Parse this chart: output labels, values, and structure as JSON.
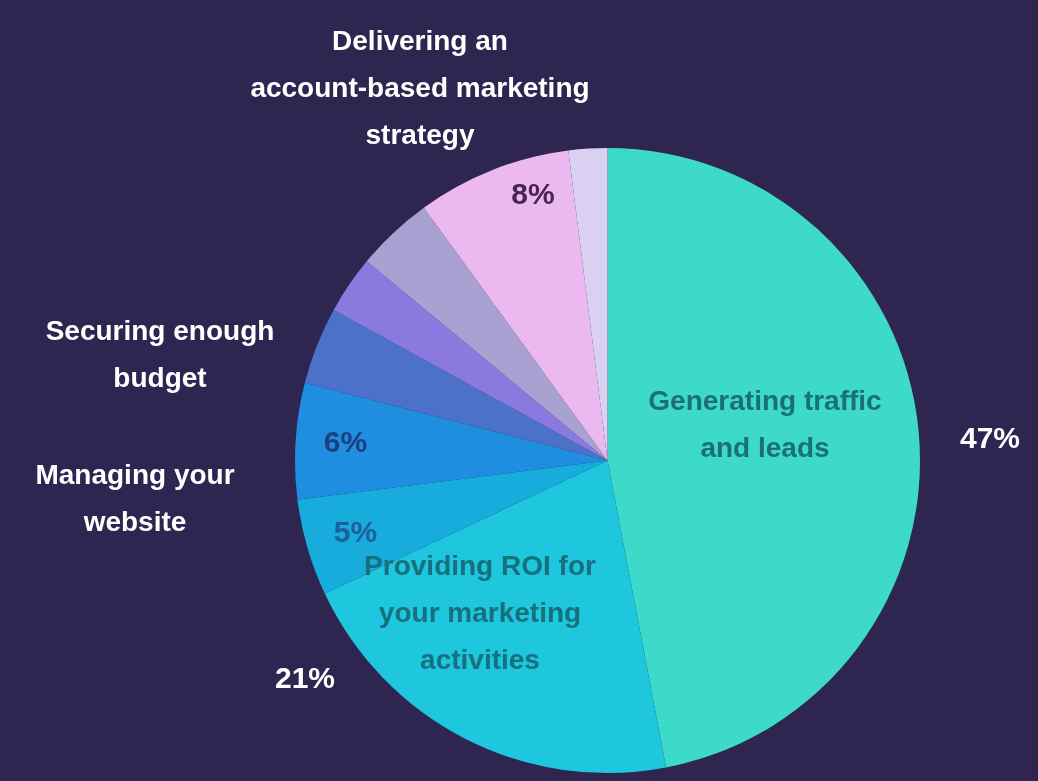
{
  "chart_data": {
    "type": "pie",
    "categories": [
      "Generating traffic and leads",
      "Providing ROI for your marketing activities",
      "Managing your website",
      "Securing enough budget",
      null,
      null,
      null,
      "Delivering an account-based marketing strategy",
      null
    ],
    "values": [
      47,
      21,
      5,
      6,
      4,
      3,
      4,
      8,
      2
    ],
    "colors": [
      "#3dd9c9",
      "#1ec6de",
      "#17acdc",
      "#1f8ee0",
      "#4b72c8",
      "#8a7ae0",
      "#a9a1d2",
      "#ebb9f0",
      "#d9d0f2"
    ],
    "value_labels": [
      "47%",
      "21%",
      "5%",
      "6%",
      null,
      null,
      null,
      "8%",
      null
    ],
    "legend": false
  }
}
